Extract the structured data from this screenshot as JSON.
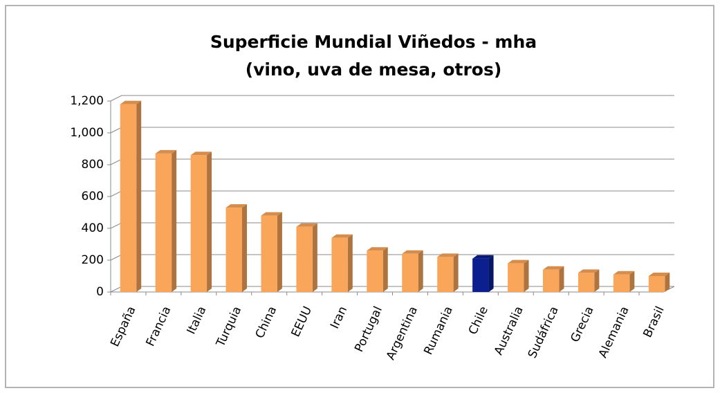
{
  "chart_data": {
    "type": "bar3d",
    "title": [
      "Superficie Mundial Viñedos - mha",
      "(vino, uva de mesa, otros)"
    ],
    "categories": [
      "España",
      "Francia",
      "Italia",
      "Turquia",
      "China",
      "EEUU",
      "Iran",
      "Portugal",
      "Argentina",
      "Rumania",
      "Chile",
      "Australia",
      "Sudáfrica",
      "Grecia",
      "Alemania",
      "Brasil"
    ],
    "values": [
      1180,
      870,
      860,
      530,
      480,
      410,
      340,
      260,
      240,
      220,
      210,
      180,
      140,
      120,
      110,
      100
    ],
    "colors": [
      "#f9a65a",
      "#f9a65a",
      "#f9a65a",
      "#f9a65a",
      "#f9a65a",
      "#f9a65a",
      "#f9a65a",
      "#f9a65a",
      "#f9a65a",
      "#f9a65a",
      "#0b1f8f",
      "#f9a65a",
      "#f9a65a",
      "#f9a65a",
      "#f9a65a",
      "#f9a65a"
    ],
    "ylim": [
      0,
      1200
    ],
    "yticks": [
      0,
      200,
      400,
      600,
      800,
      {
        "value": 1000,
        "label": "1,000"
      },
      {
        "value": 1200,
        "label": "1,200"
      }
    ],
    "grid": true
  }
}
